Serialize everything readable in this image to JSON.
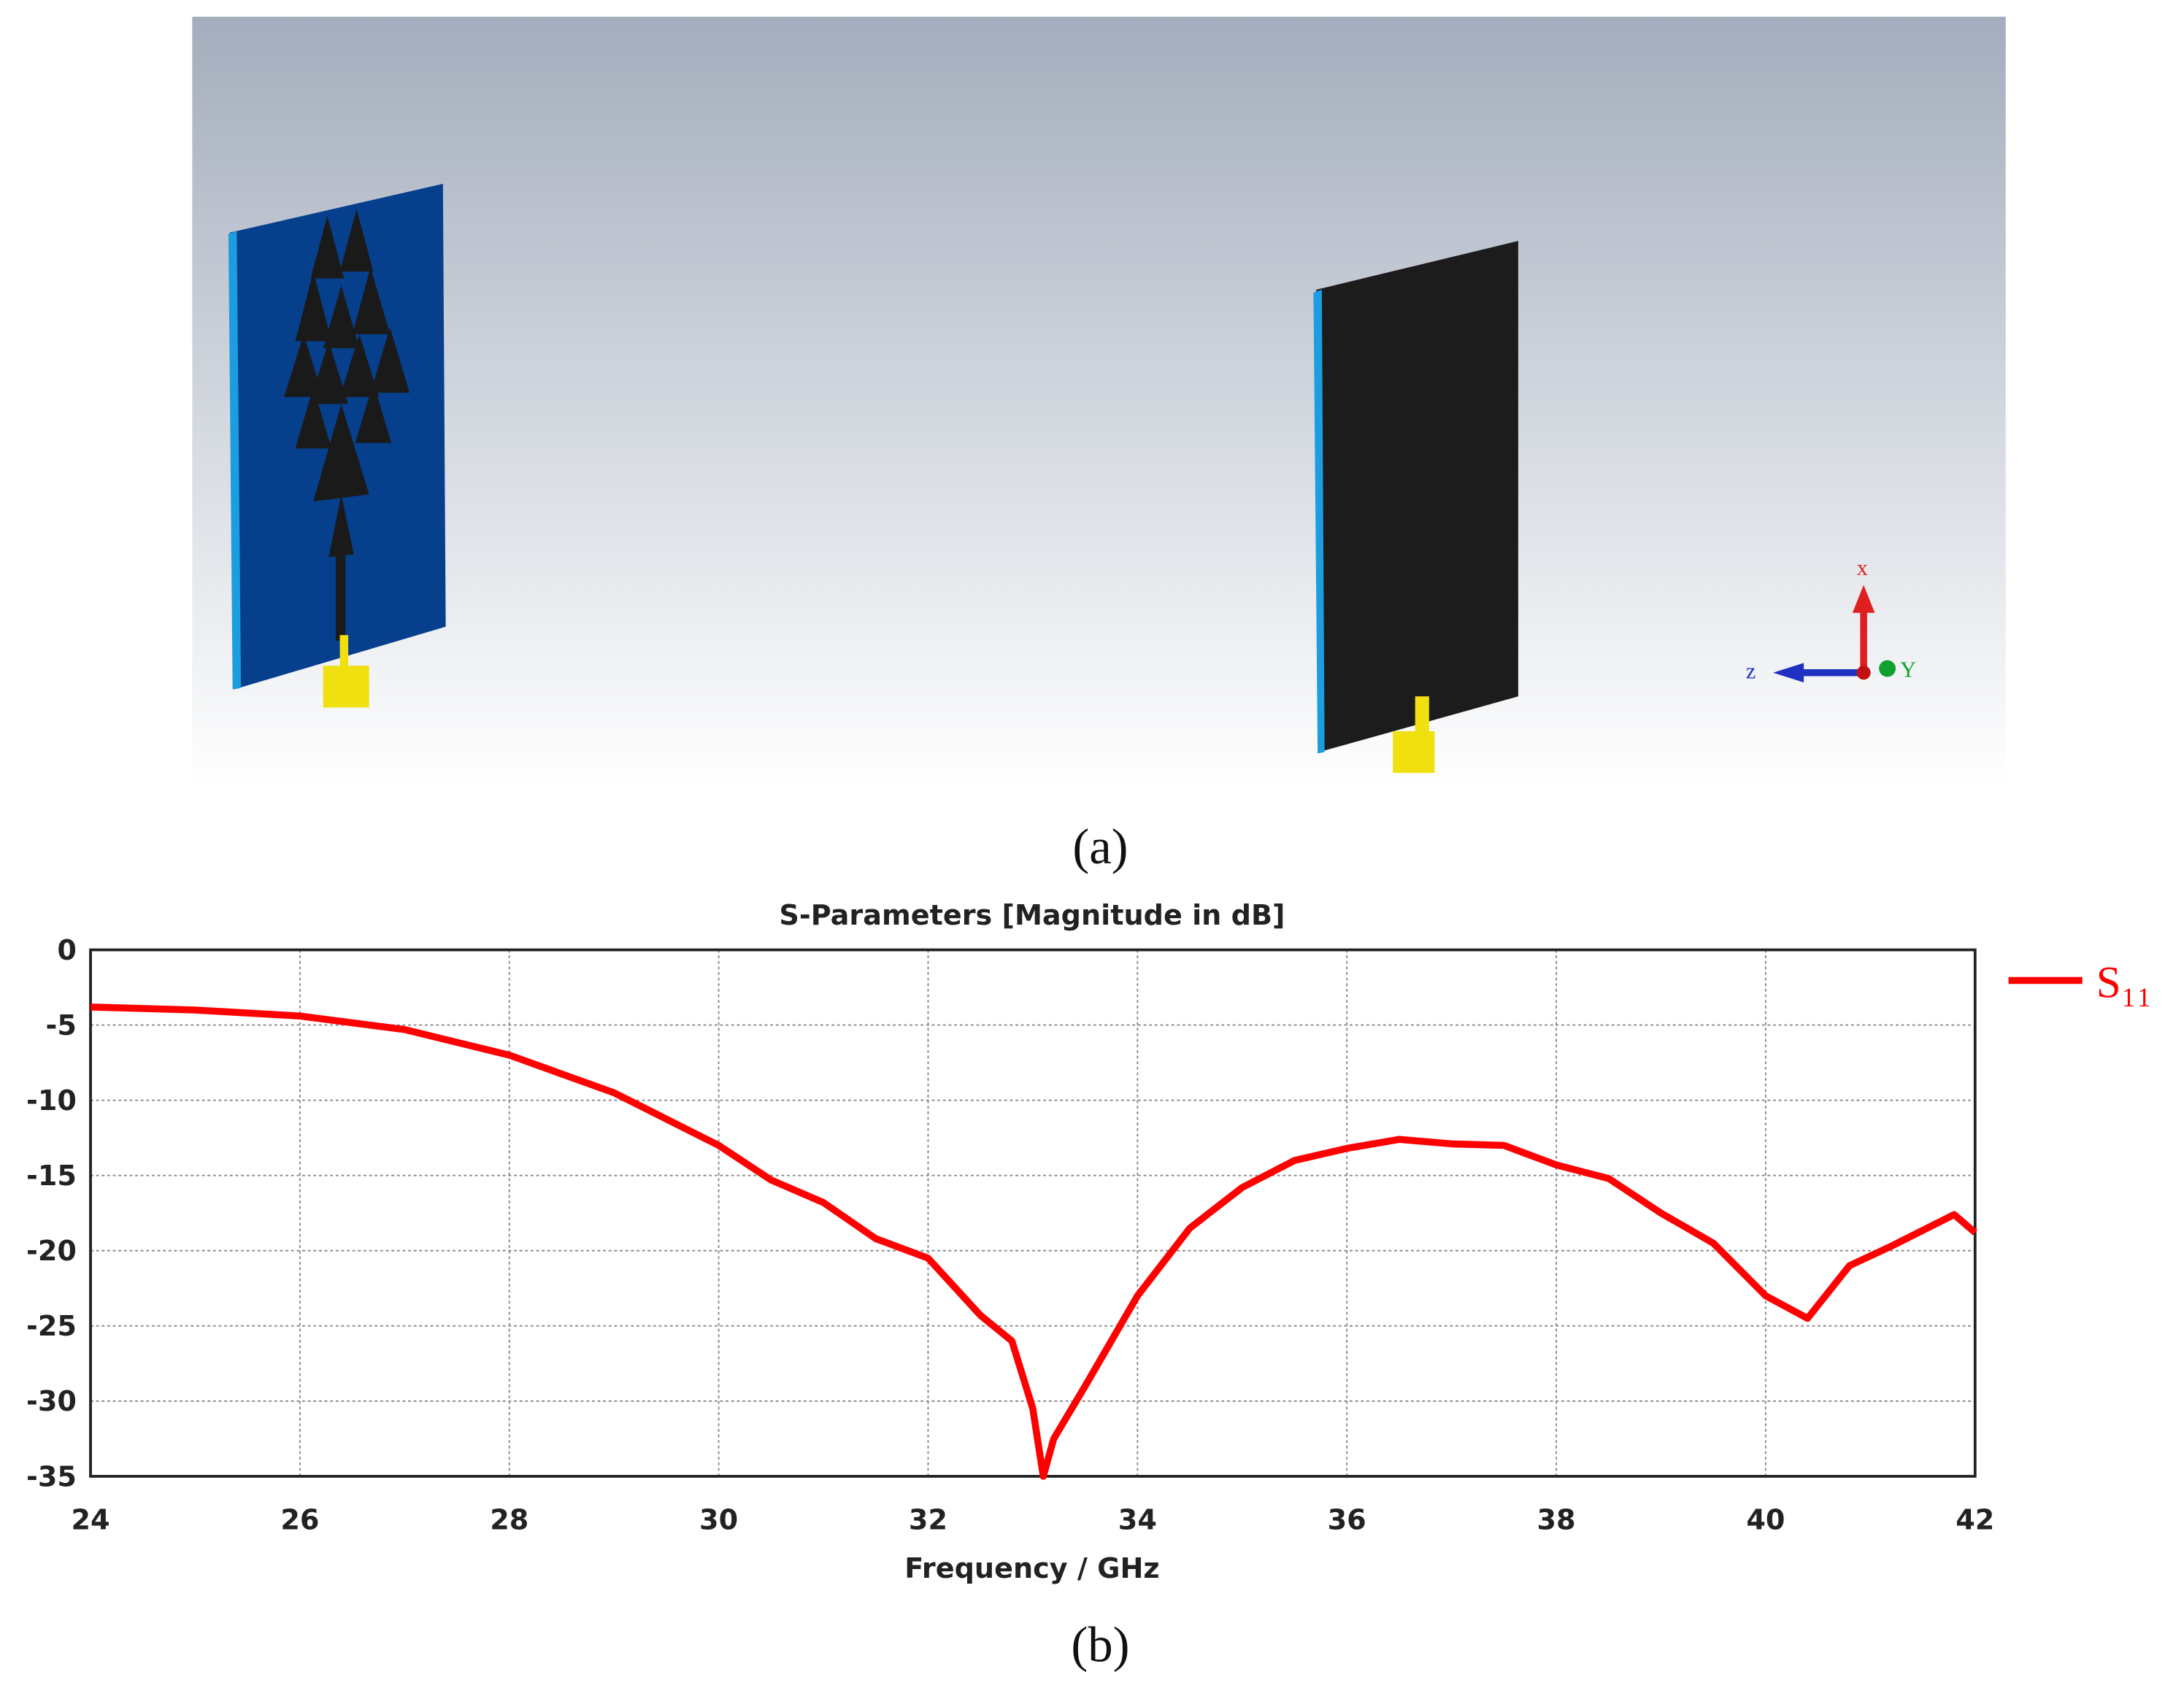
{
  "figure": {
    "caption_a": "(a)",
    "caption_b": "(b)",
    "axis_x": "x",
    "axis_z": "z",
    "axis_y": "Y"
  },
  "chart_data": {
    "type": "line",
    "title": "S-Parameters [Magnitude in dB]",
    "x_label": "Frequency / GHz",
    "x": [
      24,
      25,
      26,
      27,
      28,
      29,
      30,
      30.5,
      31,
      31.5,
      32,
      32.5,
      32.8,
      33,
      33.1,
      33.2,
      33.5,
      34,
      34.5,
      35,
      35.5,
      36,
      36.5,
      37,
      37.5,
      38,
      38.5,
      39,
      39.5,
      40,
      40.4,
      40.8,
      41.2,
      41.8,
      42
    ],
    "series": [
      {
        "name": "S₁₁",
        "color": "#ff0000",
        "values": [
          -3.8,
          -4.0,
          -4.4,
          -5.3,
          -7.0,
          -9.5,
          -13.0,
          -15.3,
          -16.8,
          -19.2,
          -20.5,
          -24.3,
          -26.0,
          -30.5,
          -35.0,
          -32.5,
          -29.0,
          -23.0,
          -18.5,
          -15.8,
          -14.0,
          -13.2,
          -12.6,
          -12.9,
          -13.0,
          -14.3,
          -15.2,
          -17.5,
          -19.5,
          -23.0,
          -24.5,
          -21.0,
          -19.7,
          -17.6,
          -18.8
        ]
      }
    ],
    "xlim": [
      24,
      42
    ],
    "xticks": [
      24,
      26,
      28,
      30,
      32,
      34,
      36,
      38,
      40,
      42
    ],
    "ylim": [
      -35,
      0
    ],
    "yticks": [
      0,
      -5,
      -10,
      -15,
      -20,
      -25,
      -30,
      -35
    ],
    "grid": true
  }
}
